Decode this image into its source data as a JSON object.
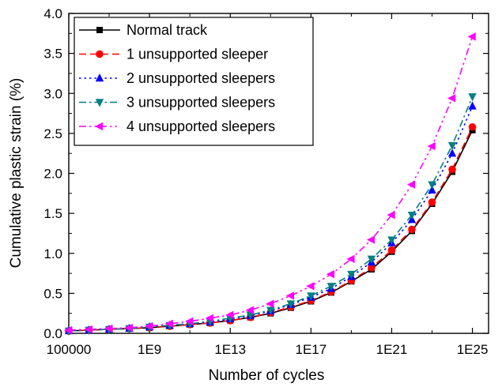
{
  "chart_data": {
    "type": "line",
    "xlabel": "Number of cycles",
    "ylabel": "Cumulative plastic strain (%)",
    "x_scale": "log",
    "x_exponents": [
      5,
      6,
      7,
      8,
      9,
      10,
      11,
      12,
      13,
      14,
      15,
      16,
      17,
      18,
      19,
      20,
      21,
      22,
      23,
      24,
      25
    ],
    "xlim_exponent": [
      5,
      25.8
    ],
    "ylim": [
      0,
      4.0
    ],
    "x_tick_exponents": [
      5,
      9,
      13,
      17,
      21,
      25
    ],
    "x_tick_labels": [
      "100000",
      "1E9",
      "1E13",
      "1E17",
      "1E21",
      "1E25"
    ],
    "y_ticks": [
      0.0,
      0.5,
      1.0,
      1.5,
      2.0,
      2.5,
      3.0,
      3.5,
      4.0
    ],
    "y_tick_labels": [
      "0.0",
      "0.5",
      "1.0",
      "1.5",
      "2.0",
      "2.5",
      "3.0",
      "3.5",
      "4.0"
    ],
    "legend_position": "top-left",
    "grid": false,
    "series": [
      {
        "name": "Normal track",
        "color": "#000000",
        "marker": "square",
        "dash": "solid",
        "values": [
          0.03,
          0.04,
          0.05,
          0.06,
          0.07,
          0.09,
          0.11,
          0.13,
          0.16,
          0.2,
          0.25,
          0.32,
          0.4,
          0.51,
          0.65,
          0.8,
          1.02,
          1.28,
          1.62,
          2.02,
          2.54
        ]
      },
      {
        "name": "1 unsupported sleeper",
        "color": "#ff0000",
        "marker": "circle",
        "dash": "dash",
        "values": [
          0.03,
          0.04,
          0.05,
          0.06,
          0.07,
          0.09,
          0.11,
          0.13,
          0.16,
          0.2,
          0.26,
          0.33,
          0.41,
          0.52,
          0.66,
          0.82,
          1.04,
          1.3,
          1.64,
          2.05,
          2.58
        ]
      },
      {
        "name": "2 unsupported sleepers",
        "color": "#0000ff",
        "marker": "triangle-up",
        "dash": "dot",
        "values": [
          0.03,
          0.04,
          0.05,
          0.06,
          0.08,
          0.1,
          0.12,
          0.14,
          0.18,
          0.22,
          0.28,
          0.36,
          0.45,
          0.56,
          0.71,
          0.89,
          1.13,
          1.42,
          1.79,
          2.25,
          2.84
        ]
      },
      {
        "name": "3 unsupported sleepers",
        "color": "#008080",
        "marker": "triangle-down",
        "dash": "dashdot",
        "values": [
          0.03,
          0.04,
          0.05,
          0.06,
          0.08,
          0.1,
          0.12,
          0.15,
          0.19,
          0.23,
          0.29,
          0.37,
          0.47,
          0.59,
          0.74,
          0.93,
          1.17,
          1.48,
          1.86,
          2.35,
          2.96
        ]
      },
      {
        "name": "4 unsupported sleepers",
        "color": "#ff00ff",
        "marker": "triangle-left",
        "dash": "dashdotdot",
        "values": [
          0.04,
          0.05,
          0.06,
          0.07,
          0.09,
          0.12,
          0.15,
          0.19,
          0.23,
          0.29,
          0.37,
          0.47,
          0.59,
          0.74,
          0.93,
          1.17,
          1.48,
          1.86,
          2.34,
          2.94,
          3.71
        ]
      }
    ]
  }
}
